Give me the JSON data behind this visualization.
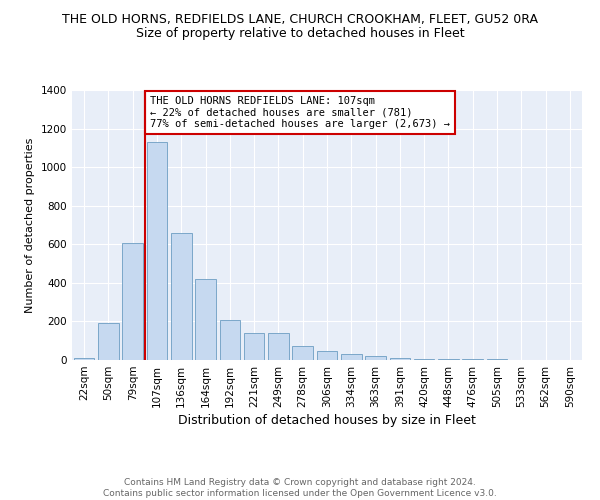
{
  "title": "THE OLD HORNS, REDFIELDS LANE, CHURCH CROOKHAM, FLEET, GU52 0RA",
  "subtitle": "Size of property relative to detached houses in Fleet",
  "xlabel": "Distribution of detached houses by size in Fleet",
  "ylabel": "Number of detached properties",
  "categories": [
    "22sqm",
    "50sqm",
    "79sqm",
    "107sqm",
    "136sqm",
    "164sqm",
    "192sqm",
    "221sqm",
    "249sqm",
    "278sqm",
    "306sqm",
    "334sqm",
    "363sqm",
    "391sqm",
    "420sqm",
    "448sqm",
    "476sqm",
    "505sqm",
    "533sqm",
    "562sqm",
    "590sqm"
  ],
  "values": [
    10,
    190,
    605,
    1130,
    660,
    420,
    210,
    140,
    140,
    75,
    45,
    30,
    20,
    10,
    5,
    3,
    3,
    3,
    2,
    0,
    0
  ],
  "bar_color": "#c6d9f0",
  "bar_edge_color": "#7ba7c9",
  "red_line_index": 3,
  "annotation_text": "THE OLD HORNS REDFIELDS LANE: 107sqm\n← 22% of detached houses are smaller (781)\n77% of semi-detached houses are larger (2,673) →",
  "annotation_box_color": "#ffffff",
  "annotation_box_edge_color": "#cc0000",
  "ylim": [
    0,
    1400
  ],
  "yticks": [
    0,
    200,
    400,
    600,
    800,
    1000,
    1200,
    1400
  ],
  "footer_line1": "Contains HM Land Registry data © Crown copyright and database right 2024.",
  "footer_line2": "Contains public sector information licensed under the Open Government Licence v3.0.",
  "background_color": "#e8eef8",
  "title_fontsize": 9,
  "subtitle_fontsize": 9,
  "xlabel_fontsize": 9,
  "ylabel_fontsize": 8,
  "tick_fontsize": 7.5,
  "annotation_fontsize": 7.5,
  "footer_fontsize": 6.5
}
